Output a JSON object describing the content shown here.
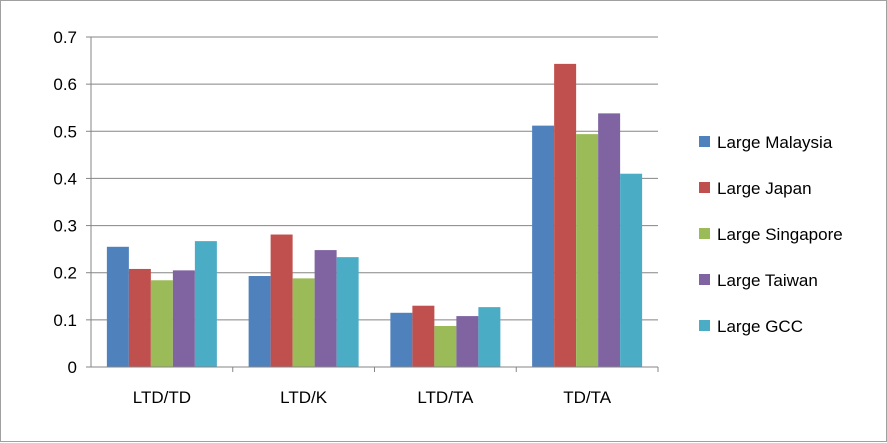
{
  "chart_data": {
    "type": "bar",
    "title": "",
    "xlabel": "",
    "ylabel": "",
    "categories": [
      "LTD/TD",
      "LTD/K",
      "LTD/TA",
      "TD/TA"
    ],
    "ylim": [
      0,
      0.7
    ],
    "yticks": [
      "0",
      "0.1",
      "0.2",
      "0.3",
      "0.4",
      "0.5",
      "0.6",
      "0.7"
    ],
    "grid": true,
    "legend_position": "right",
    "series": [
      {
        "name": "Large Malaysia",
        "color": "#4F81BD",
        "values": [
          0.255,
          0.193,
          0.115,
          0.512
        ]
      },
      {
        "name": "Large Japan",
        "color": "#C0504D",
        "values": [
          0.208,
          0.281,
          0.13,
          0.643
        ]
      },
      {
        "name": "Large Singapore",
        "color": "#9BBB59",
        "values": [
          0.184,
          0.188,
          0.087,
          0.494
        ]
      },
      {
        "name": "Large Taiwan",
        "color": "#8064A2",
        "values": [
          0.205,
          0.248,
          0.108,
          0.538
        ]
      },
      {
        "name": "Large GCC",
        "color": "#4BACC6",
        "values": [
          0.267,
          0.233,
          0.127,
          0.41
        ]
      }
    ]
  }
}
